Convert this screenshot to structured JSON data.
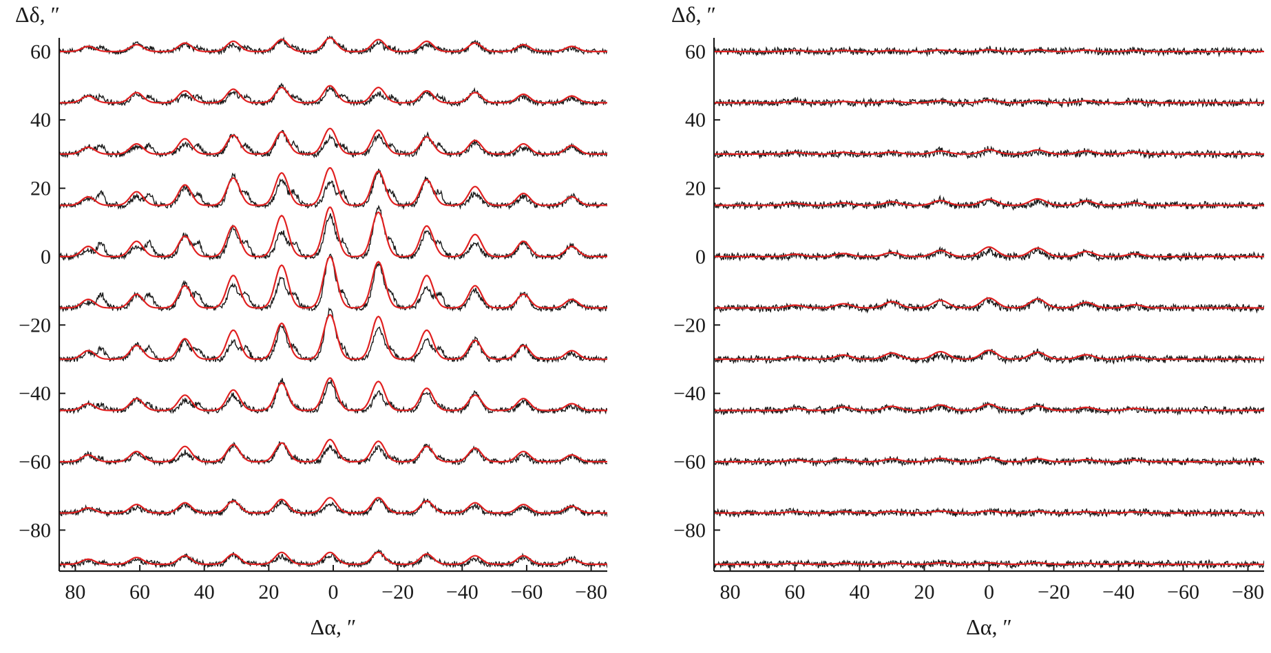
{
  "chart_data": [
    {
      "type": "line",
      "panel": "left",
      "xlabel": "Δα, ″",
      "ylabel": "Δδ, ″",
      "xlim": [
        85,
        -85
      ],
      "ylim": [
        -92,
        64
      ],
      "x_ticks": [
        80,
        60,
        40,
        20,
        0,
        -20,
        -40,
        -60,
        -80
      ],
      "x_tick_labels": [
        "80",
        "60",
        "40",
        "20",
        "0",
        "−20",
        "−40",
        "−60",
        "−80"
      ],
      "y_ticks": [
        60,
        40,
        20,
        0,
        -20,
        -40,
        -60,
        -80
      ],
      "y_tick_labels": [
        "60",
        "40",
        "20",
        "0",
        "−20",
        "−40",
        "−60",
        "−80"
      ],
      "grid": false,
      "legend": "none",
      "colors": {
        "observed": "#1a1a1a",
        "model": "#e02020"
      },
      "series_notes": "Each row is a cut along Δα at constant Δδ; black = observed profile, red = model fit.",
      "peak_positions": [
        76,
        61,
        46,
        31,
        16,
        1,
        -14,
        -29,
        -44,
        -59,
        -74
      ],
      "satellite_positions": [
        72,
        57,
        42,
        27,
        12,
        -3,
        -18,
        -33
      ],
      "rows": [
        {
          "offset": 60,
          "amps": [
            1.5,
            2.0,
            2.5,
            3.0,
            3.5,
            4.0,
            3.5,
            3.0,
            2.5,
            2.0,
            1.5
          ],
          "satellite_amp": 1.0
        },
        {
          "offset": 45,
          "amps": [
            2.0,
            3.0,
            3.5,
            4.0,
            4.5,
            5.0,
            4.5,
            3.5,
            3.0,
            2.5,
            2.0
          ],
          "satellite_amp": 1.8
        },
        {
          "offset": 30,
          "amps": [
            2.0,
            3.0,
            4.5,
            5.5,
            6.5,
            7.5,
            7.0,
            5.0,
            4.0,
            3.0,
            2.5
          ],
          "satellite_amp": 2.5
        },
        {
          "offset": 15,
          "amps": [
            2.5,
            4.0,
            6.0,
            8.0,
            9.5,
            11.0,
            10.0,
            7.5,
            5.5,
            3.5,
            2.5
          ],
          "satellite_amp": 3.5
        },
        {
          "offset": 0,
          "amps": [
            3.0,
            4.5,
            6.0,
            9.0,
            12.0,
            14.5,
            13.0,
            9.0,
            6.5,
            4.5,
            3.0
          ],
          "satellite_amp": 4.0
        },
        {
          "offset": -15,
          "amps": [
            2.5,
            4.0,
            6.5,
            9.5,
            12.5,
            15.0,
            13.5,
            9.5,
            6.5,
            4.0,
            2.5
          ],
          "satellite_amp": 4.0
        },
        {
          "offset": -30,
          "amps": [
            2.5,
            4.0,
            6.0,
            8.5,
            10.5,
            13.0,
            12.5,
            8.5,
            5.5,
            4.0,
            2.5
          ],
          "satellite_amp": 3.0
        },
        {
          "offset": -45,
          "amps": [
            2.0,
            3.5,
            4.5,
            6.0,
            8.0,
            9.5,
            8.5,
            6.5,
            4.5,
            3.5,
            2.0
          ],
          "satellite_amp": 1.5
        },
        {
          "offset": -60,
          "amps": [
            2.0,
            3.0,
            4.5,
            5.0,
            5.5,
            6.5,
            6.0,
            4.5,
            4.0,
            3.0,
            2.0
          ],
          "satellite_amp": 1.0
        },
        {
          "offset": -75,
          "amps": [
            1.5,
            2.5,
            3.0,
            3.5,
            4.0,
            4.5,
            4.5,
            3.5,
            3.0,
            2.5,
            2.0
          ],
          "satellite_amp": 0.5
        },
        {
          "offset": -90,
          "amps": [
            1.5,
            2.0,
            2.5,
            3.0,
            3.5,
            3.5,
            3.5,
            3.0,
            2.5,
            2.5,
            1.5
          ],
          "satellite_amp": 0.5
        }
      ]
    },
    {
      "type": "line",
      "panel": "right",
      "xlabel": "Δα, ″",
      "ylabel": "Δδ, ″",
      "xlim": [
        85,
        -85
      ],
      "ylim": [
        -92,
        64
      ],
      "x_ticks": [
        80,
        60,
        40,
        20,
        0,
        -20,
        -40,
        -60,
        -80
      ],
      "x_tick_labels": [
        "80",
        "60",
        "40",
        "20",
        "0",
        "−20",
        "−40",
        "−60",
        "−80"
      ],
      "y_ticks": [
        60,
        40,
        20,
        0,
        -20,
        -40,
        -60,
        -80
      ],
      "y_tick_labels": [
        "60",
        "40",
        "20",
        "0",
        "−20",
        "−40",
        "−60",
        "−80"
      ],
      "grid": false,
      "legend": "none",
      "colors": {
        "observed": "#1a1a1a",
        "model": "#e02020"
      },
      "series_notes": "Each row is a cut along Δα at constant Δδ; black = observed profile, red = model fit.",
      "peak_positions": [
        60,
        45,
        30,
        15,
        0,
        -15,
        -30,
        -45
      ],
      "rows": [
        {
          "offset": 60,
          "amps": [
            0.3,
            0.3,
            0.3,
            0.4,
            0.5,
            0.5,
            0.4,
            0.3
          ]
        },
        {
          "offset": 45,
          "amps": [
            0.4,
            0.4,
            0.5,
            0.6,
            0.8,
            0.7,
            0.6,
            0.4
          ]
        },
        {
          "offset": 30,
          "amps": [
            0.5,
            0.5,
            0.6,
            0.9,
            1.3,
            1.2,
            0.9,
            0.6
          ]
        },
        {
          "offset": 15,
          "amps": [
            0.6,
            0.7,
            1.0,
            1.4,
            1.8,
            1.9,
            1.3,
            0.7
          ]
        },
        {
          "offset": 0,
          "amps": [
            0.7,
            0.9,
            1.2,
            1.8,
            2.8,
            2.5,
            1.5,
            0.8
          ]
        },
        {
          "offset": -15,
          "amps": [
            0.8,
            1.2,
            1.8,
            2.2,
            2.9,
            2.6,
            1.6,
            0.9
          ]
        },
        {
          "offset": -30,
          "amps": [
            0.7,
            1.2,
            1.8,
            2.2,
            2.6,
            2.0,
            1.3,
            0.8
          ]
        },
        {
          "offset": -45,
          "amps": [
            0.6,
            1.0,
            1.2,
            1.6,
            1.8,
            1.3,
            0.9,
            0.6
          ]
        },
        {
          "offset": -60,
          "amps": [
            0.5,
            0.7,
            0.8,
            1.0,
            1.2,
            0.9,
            0.6,
            0.5
          ]
        },
        {
          "offset": -75,
          "amps": [
            0.4,
            0.4,
            0.5,
            0.6,
            0.6,
            0.5,
            0.4,
            0.3
          ]
        },
        {
          "offset": -90,
          "amps": [
            0.3,
            0.3,
            0.3,
            0.4,
            0.4,
            0.4,
            0.3,
            0.3
          ]
        }
      ]
    }
  ]
}
